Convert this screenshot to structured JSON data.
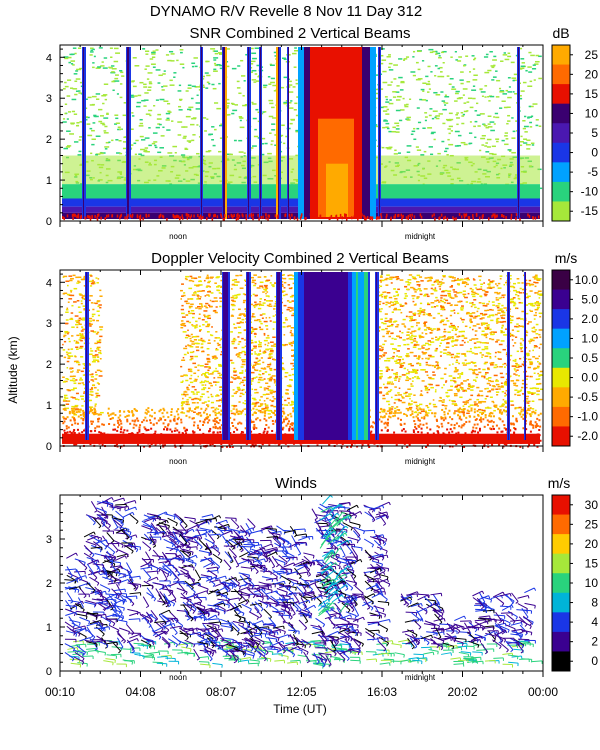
{
  "header": {
    "title": "DYNAMO R/V Revelle    8 Nov 11 Day 312"
  },
  "chart_data": [
    {
      "type": "heatmap",
      "title": "SNR Combined 2 Vertical Beams",
      "ylim": [
        0,
        4.3
      ],
      "yticks": [
        "0",
        "1",
        "2",
        "3",
        "4"
      ],
      "xmarks": [
        "noon",
        "midnight"
      ],
      "colorbar": {
        "unit": "dB",
        "labels": [
          "25",
          "20",
          "15",
          "10",
          "5",
          "0",
          "-5",
          "-10",
          "-15"
        ],
        "colors": [
          "#ffaa00",
          "#ff6a00",
          "#e81000",
          "#3a0070",
          "#4a18b0",
          "#1a36e6",
          "#00a2ff",
          "#29d37d",
          "#a6e83a"
        ]
      }
    },
    {
      "type": "heatmap",
      "title": "Doppler Velocity Combined 2 Vertical Beams",
      "ylabel": "Altitude (km)",
      "ylim": [
        0,
        4.3
      ],
      "yticks": [
        "0",
        "1",
        "2",
        "3",
        "4"
      ],
      "xmarks": [
        "noon",
        "midnight"
      ],
      "colorbar": {
        "unit": "m/s",
        "labels": [
          "10.0",
          "5.0",
          "2.0",
          "1.0",
          "0.5",
          "0.0",
          "-0.5",
          "-1.0",
          "-2.0"
        ],
        "colors": [
          "#3a0045",
          "#3a0090",
          "#1a36e6",
          "#00a2ff",
          "#29d37d",
          "#e8e800",
          "#ffaa00",
          "#ff6a00",
          "#e81000"
        ]
      }
    },
    {
      "type": "scatter",
      "title": "Winds",
      "xlabel": "Time (UT)",
      "ylim": [
        0,
        4.0
      ],
      "yticks": [
        "0",
        "1",
        "2",
        "3"
      ],
      "xticks": [
        "00:10",
        "04:08",
        "08:07",
        "12:05",
        "16:03",
        "20:02",
        "00:00"
      ],
      "xmarks": [
        "noon",
        "midnight"
      ],
      "colorbar": {
        "unit": "m/s",
        "labels": [
          "30",
          "25",
          "20",
          "15",
          "10",
          "8",
          "4",
          "2",
          "0"
        ],
        "colors": [
          "#e81000",
          "#ff6a00",
          "#ffcc00",
          "#a6e83a",
          "#29d37d",
          "#00b4d8",
          "#1a36e6",
          "#3a0090",
          "#000000"
        ]
      }
    }
  ]
}
